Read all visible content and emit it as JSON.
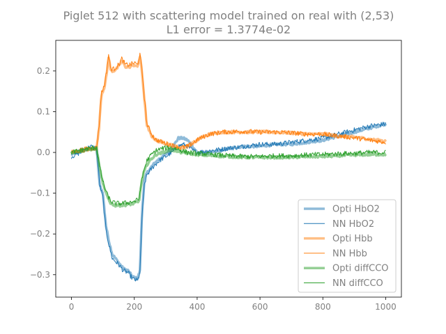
{
  "chart_data": {
    "type": "line",
    "title": "Piglet 512 with scattering model trained on real with (2,53)",
    "subtitle": "L1 error = 1.3774e-02",
    "xlabel": "",
    "ylabel": "",
    "xlim": [
      -50,
      1050
    ],
    "ylim": [
      -0.355,
      0.275
    ],
    "xticks": [
      0,
      200,
      400,
      600,
      800,
      1000
    ],
    "xtick_labels": [
      "0",
      "200",
      "400",
      "600",
      "800",
      "1000"
    ],
    "yticks": [
      -0.3,
      -0.2,
      -0.1,
      0.0,
      0.1,
      0.2
    ],
    "ytick_labels": [
      "−0.3",
      "−0.2",
      "−0.1",
      "0.0",
      "0.1",
      "0.2"
    ],
    "grid": false,
    "legend_position": "lower right",
    "series": [
      {
        "name": "Opti HbO2",
        "color": "#1f77b4",
        "style": "thick",
        "alpha": 0.5,
        "points": [
          [
            0,
            -0.005
          ],
          [
            30,
            0.005
          ],
          [
            60,
            0.01
          ],
          [
            80,
            0.008
          ],
          [
            90,
            -0.08
          ],
          [
            100,
            -0.1
          ],
          [
            110,
            -0.18
          ],
          [
            120,
            -0.22
          ],
          [
            130,
            -0.25
          ],
          [
            150,
            -0.27
          ],
          [
            165,
            -0.285
          ],
          [
            180,
            -0.29
          ],
          [
            195,
            -0.305
          ],
          [
            210,
            -0.31
          ],
          [
            218,
            -0.29
          ],
          [
            225,
            -0.14
          ],
          [
            232,
            -0.07
          ],
          [
            240,
            -0.05
          ],
          [
            260,
            -0.03
          ],
          [
            280,
            -0.015
          ],
          [
            300,
            -0.005
          ],
          [
            320,
            0.01
          ],
          [
            340,
            0.035
          ],
          [
            355,
            0.035
          ],
          [
            370,
            0.03
          ],
          [
            385,
            0.015
          ],
          [
            400,
            0.0
          ],
          [
            450,
            0.0
          ],
          [
            500,
            0.01
          ],
          [
            550,
            0.015
          ],
          [
            600,
            0.015
          ],
          [
            650,
            0.02
          ],
          [
            700,
            0.02
          ],
          [
            750,
            0.025
          ],
          [
            800,
            0.03
          ],
          [
            850,
            0.04
          ],
          [
            900,
            0.05
          ],
          [
            950,
            0.06
          ],
          [
            1000,
            0.07
          ]
        ]
      },
      {
        "name": "NN HbO2",
        "color": "#1f77b4",
        "style": "thin",
        "alpha": 1,
        "points": [
          [
            0,
            -0.01
          ],
          [
            30,
            0.0
          ],
          [
            60,
            0.015
          ],
          [
            80,
            0.01
          ],
          [
            90,
            -0.08
          ],
          [
            100,
            -0.11
          ],
          [
            110,
            -0.19
          ],
          [
            120,
            -0.23
          ],
          [
            130,
            -0.26
          ],
          [
            150,
            -0.275
          ],
          [
            165,
            -0.29
          ],
          [
            180,
            -0.295
          ],
          [
            195,
            -0.31
          ],
          [
            210,
            -0.315
          ],
          [
            218,
            -0.295
          ],
          [
            225,
            -0.15
          ],
          [
            232,
            -0.08
          ],
          [
            240,
            -0.055
          ],
          [
            260,
            -0.035
          ],
          [
            280,
            -0.02
          ],
          [
            300,
            -0.01
          ],
          [
            320,
            0.0
          ],
          [
            340,
            0.015
          ],
          [
            355,
            0.02
          ],
          [
            370,
            0.015
          ],
          [
            385,
            0.005
          ],
          [
            400,
            0.0
          ],
          [
            450,
            0.005
          ],
          [
            500,
            0.01
          ],
          [
            550,
            0.015
          ],
          [
            600,
            0.02
          ],
          [
            650,
            0.02
          ],
          [
            700,
            0.025
          ],
          [
            750,
            0.03
          ],
          [
            800,
            0.035
          ],
          [
            850,
            0.045
          ],
          [
            900,
            0.055
          ],
          [
            950,
            0.065
          ],
          [
            1000,
            0.07
          ]
        ]
      },
      {
        "name": "Opti Hbb",
        "color": "#ff7f0e",
        "style": "thick",
        "alpha": 0.5,
        "points": [
          [
            0,
            0.0
          ],
          [
            40,
            0.005
          ],
          [
            80,
            0.01
          ],
          [
            88,
            0.06
          ],
          [
            95,
            0.14
          ],
          [
            105,
            0.16
          ],
          [
            112,
            0.19
          ],
          [
            118,
            0.235
          ],
          [
            125,
            0.2
          ],
          [
            135,
            0.2
          ],
          [
            150,
            0.21
          ],
          [
            160,
            0.225
          ],
          [
            172,
            0.21
          ],
          [
            185,
            0.21
          ],
          [
            200,
            0.215
          ],
          [
            210,
            0.21
          ],
          [
            218,
            0.235
          ],
          [
            224,
            0.2
          ],
          [
            232,
            0.13
          ],
          [
            240,
            0.065
          ],
          [
            255,
            0.04
          ],
          [
            270,
            0.03
          ],
          [
            290,
            0.025
          ],
          [
            310,
            0.02
          ],
          [
            330,
            0.015
          ],
          [
            350,
            0.01
          ],
          [
            370,
            0.015
          ],
          [
            390,
            0.025
          ],
          [
            410,
            0.035
          ],
          [
            440,
            0.045
          ],
          [
            480,
            0.05
          ],
          [
            550,
            0.05
          ],
          [
            600,
            0.05
          ],
          [
            650,
            0.05
          ],
          [
            700,
            0.048
          ],
          [
            750,
            0.045
          ],
          [
            800,
            0.045
          ],
          [
            850,
            0.04
          ],
          [
            900,
            0.038
          ],
          [
            950,
            0.032
          ],
          [
            1000,
            0.028
          ]
        ]
      },
      {
        "name": "NN Hbb",
        "color": "#ff7f0e",
        "style": "thin",
        "alpha": 1,
        "points": [
          [
            0,
            0.0
          ],
          [
            40,
            0.008
          ],
          [
            80,
            0.012
          ],
          [
            88,
            0.065
          ],
          [
            95,
            0.145
          ],
          [
            105,
            0.165
          ],
          [
            112,
            0.2
          ],
          [
            118,
            0.24
          ],
          [
            125,
            0.205
          ],
          [
            135,
            0.205
          ],
          [
            150,
            0.215
          ],
          [
            160,
            0.23
          ],
          [
            172,
            0.215
          ],
          [
            185,
            0.215
          ],
          [
            200,
            0.22
          ],
          [
            210,
            0.215
          ],
          [
            218,
            0.24
          ],
          [
            224,
            0.205
          ],
          [
            232,
            0.135
          ],
          [
            240,
            0.07
          ],
          [
            255,
            0.045
          ],
          [
            270,
            0.03
          ],
          [
            290,
            0.025
          ],
          [
            310,
            0.02
          ],
          [
            330,
            0.015
          ],
          [
            350,
            0.012
          ],
          [
            370,
            0.015
          ],
          [
            390,
            0.025
          ],
          [
            410,
            0.035
          ],
          [
            440,
            0.045
          ],
          [
            480,
            0.05
          ],
          [
            550,
            0.052
          ],
          [
            600,
            0.05
          ],
          [
            650,
            0.05
          ],
          [
            700,
            0.048
          ],
          [
            750,
            0.045
          ],
          [
            800,
            0.045
          ],
          [
            850,
            0.04
          ],
          [
            900,
            0.036
          ],
          [
            950,
            0.03
          ],
          [
            1000,
            0.025
          ]
        ]
      },
      {
        "name": "Opti diffCCO",
        "color": "#2ca02c",
        "style": "thick",
        "alpha": 0.5,
        "points": [
          [
            0,
            0.0
          ],
          [
            40,
            0.005
          ],
          [
            80,
            0.01
          ],
          [
            88,
            -0.03
          ],
          [
            95,
            -0.06
          ],
          [
            105,
            -0.09
          ],
          [
            115,
            -0.11
          ],
          [
            125,
            -0.125
          ],
          [
            140,
            -0.13
          ],
          [
            160,
            -0.13
          ],
          [
            180,
            -0.128
          ],
          [
            200,
            -0.125
          ],
          [
            215,
            -0.12
          ],
          [
            222,
            -0.08
          ],
          [
            230,
            -0.05
          ],
          [
            240,
            -0.03
          ],
          [
            255,
            -0.015
          ],
          [
            270,
            -0.005
          ],
          [
            290,
            0.0
          ],
          [
            310,
            0.005
          ],
          [
            330,
            0.005
          ],
          [
            350,
            0.0
          ],
          [
            370,
            -0.002
          ],
          [
            400,
            -0.005
          ],
          [
            450,
            -0.008
          ],
          [
            500,
            -0.01
          ],
          [
            550,
            -0.012
          ],
          [
            600,
            -0.012
          ],
          [
            650,
            -0.012
          ],
          [
            700,
            -0.012
          ],
          [
            750,
            -0.01
          ],
          [
            800,
            -0.01
          ],
          [
            850,
            -0.008
          ],
          [
            900,
            -0.006
          ],
          [
            950,
            -0.005
          ],
          [
            1000,
            -0.005
          ]
        ]
      },
      {
        "name": "NN diffCCO",
        "color": "#2ca02c",
        "style": "thin",
        "alpha": 1,
        "points": [
          [
            0,
            0.0
          ],
          [
            40,
            0.008
          ],
          [
            80,
            0.012
          ],
          [
            88,
            -0.025
          ],
          [
            95,
            -0.055
          ],
          [
            105,
            -0.085
          ],
          [
            115,
            -0.105
          ],
          [
            125,
            -0.12
          ],
          [
            140,
            -0.125
          ],
          [
            160,
            -0.125
          ],
          [
            180,
            -0.123
          ],
          [
            200,
            -0.12
          ],
          [
            215,
            -0.115
          ],
          [
            222,
            -0.075
          ],
          [
            230,
            -0.045
          ],
          [
            240,
            -0.02
          ],
          [
            255,
            -0.005
          ],
          [
            270,
            0.005
          ],
          [
            290,
            0.01
          ],
          [
            310,
            0.012
          ],
          [
            330,
            0.01
          ],
          [
            350,
            0.005
          ],
          [
            370,
            0.0
          ],
          [
            400,
            -0.002
          ],
          [
            450,
            -0.005
          ],
          [
            500,
            -0.008
          ],
          [
            550,
            -0.01
          ],
          [
            600,
            -0.01
          ],
          [
            650,
            -0.008
          ],
          [
            700,
            -0.008
          ],
          [
            750,
            -0.006
          ],
          [
            800,
            -0.005
          ],
          [
            850,
            -0.003
          ],
          [
            900,
            -0.002
          ],
          [
            950,
            0.0
          ],
          [
            1000,
            0.0
          ]
        ]
      }
    ]
  }
}
